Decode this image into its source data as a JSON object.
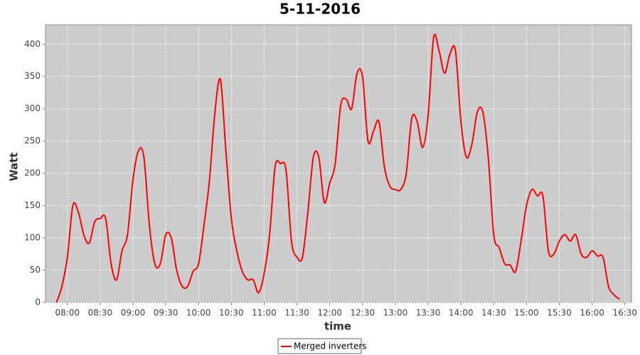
{
  "chart_data": {
    "type": "line",
    "title": "5-11-2016",
    "x_label": "time",
    "y_label": "Watt",
    "x": [
      "07:50",
      "07:55",
      "08:00",
      "08:05",
      "08:10",
      "08:15",
      "08:20",
      "08:25",
      "08:30",
      "08:35",
      "08:40",
      "08:45",
      "08:50",
      "08:55",
      "09:00",
      "09:05",
      "09:10",
      "09:15",
      "09:20",
      "09:25",
      "09:30",
      "09:35",
      "09:40",
      "09:45",
      "09:50",
      "09:55",
      "10:00",
      "10:05",
      "10:10",
      "10:15",
      "10:20",
      "10:25",
      "10:30",
      "10:35",
      "10:40",
      "10:45",
      "10:50",
      "10:55",
      "11:00",
      "11:05",
      "11:10",
      "11:15",
      "11:20",
      "11:25",
      "11:30",
      "11:35",
      "11:40",
      "11:45",
      "11:50",
      "11:55",
      "12:00",
      "12:05",
      "12:10",
      "12:15",
      "12:20",
      "12:25",
      "12:30",
      "12:35",
      "12:40",
      "12:45",
      "12:50",
      "12:55",
      "13:00",
      "13:05",
      "13:10",
      "13:15",
      "13:20",
      "13:25",
      "13:30",
      "13:35",
      "13:40",
      "13:45",
      "13:50",
      "13:55",
      "14:00",
      "14:05",
      "14:10",
      "14:15",
      "14:20",
      "14:25",
      "14:30",
      "14:35",
      "14:40",
      "14:45",
      "14:50",
      "14:55",
      "15:00",
      "15:05",
      "15:10",
      "15:15",
      "15:20",
      "15:25",
      "15:30",
      "15:35",
      "15:40",
      "15:45",
      "15:50",
      "15:55",
      "16:00",
      "16:05",
      "16:10",
      "16:15",
      "16:20",
      "16:25"
    ],
    "series": [
      {
        "name": "Merged inverters",
        "color": "#ff0000",
        "values": [
          0,
          25,
          70,
          150,
          140,
          105,
          92,
          125,
          130,
          130,
          60,
          35,
          80,
          105,
          190,
          235,
          225,
          120,
          60,
          60,
          105,
          100,
          50,
          25,
          25,
          48,
          60,
          120,
          190,
          295,
          345,
          235,
          130,
          80,
          48,
          35,
          35,
          15,
          45,
          105,
          210,
          215,
          205,
          95,
          70,
          70,
          140,
          225,
          225,
          155,
          185,
          215,
          305,
          315,
          300,
          355,
          350,
          250,
          265,
          280,
          210,
          180,
          175,
          175,
          200,
          285,
          280,
          240,
          290,
          410,
          390,
          355,
          385,
          390,
          280,
          225,
          245,
          295,
          295,
          225,
          105,
          85,
          60,
          58,
          48,
          95,
          150,
          175,
          165,
          165,
          80,
          75,
          95,
          105,
          95,
          105,
          75,
          70,
          80,
          72,
          70,
          25,
          12,
          5
        ]
      }
    ],
    "xlim": [
      "07:40",
      "16:36"
    ],
    "xticks": [
      "08:00",
      "08:30",
      "09:00",
      "09:30",
      "10:00",
      "10:30",
      "11:00",
      "11:30",
      "12:00",
      "12:30",
      "13:00",
      "13:30",
      "14:00",
      "14:30",
      "15:00",
      "15:30",
      "16:00",
      "16:30"
    ],
    "ylim": [
      0,
      430
    ],
    "yticks": [
      0,
      50,
      100,
      150,
      200,
      250,
      300,
      350,
      400
    ],
    "grid": true,
    "legend": "bottom"
  }
}
